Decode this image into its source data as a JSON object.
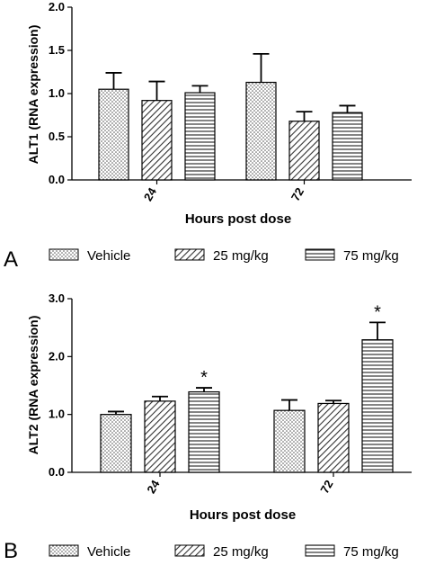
{
  "chart_data": [
    {
      "type": "bar",
      "panel_label": "A",
      "ylabel": "ALT1 (RNA expression)",
      "xlabel": "Hours post dose",
      "ylim": [
        0,
        2.0
      ],
      "yticks": [
        "0.0",
        "0.5",
        "1.0",
        "1.5",
        "2.0"
      ],
      "categories": [
        "24",
        "72"
      ],
      "series": [
        {
          "name": "Vehicle",
          "pattern": "dots",
          "values": [
            1.05,
            1.13
          ],
          "errors": [
            0.19,
            0.33
          ],
          "significant": [
            false,
            false
          ]
        },
        {
          "name": "25 mg/kg",
          "pattern": "diagonal",
          "values": [
            0.92,
            0.68
          ],
          "errors": [
            0.22,
            0.11
          ],
          "significant": [
            false,
            false
          ]
        },
        {
          "name": "75 mg/kg",
          "pattern": "horizontal",
          "values": [
            1.01,
            0.78
          ],
          "errors": [
            0.08,
            0.08
          ],
          "significant": [
            false,
            false
          ]
        }
      ],
      "legend_placement": "bottom"
    },
    {
      "type": "bar",
      "panel_label": "B",
      "ylabel": "ALT2 (RNA expression)",
      "xlabel": "Hours post dose",
      "ylim": [
        0,
        3.0
      ],
      "yticks": [
        "0.0",
        "1.0",
        "2.0",
        "3.0"
      ],
      "categories": [
        "24",
        "72"
      ],
      "series": [
        {
          "name": "Vehicle",
          "pattern": "dots",
          "values": [
            1.0,
            1.07
          ],
          "errors": [
            0.05,
            0.18
          ],
          "significant": [
            false,
            false
          ]
        },
        {
          "name": "25 mg/kg",
          "pattern": "diagonal",
          "values": [
            1.23,
            1.19
          ],
          "errors": [
            0.08,
            0.05
          ],
          "significant": [
            false,
            false
          ]
        },
        {
          "name": "75 mg/kg",
          "pattern": "horizontal",
          "values": [
            1.39,
            2.29
          ],
          "errors": [
            0.07,
            0.3
          ],
          "significant": [
            true,
            true
          ]
        }
      ],
      "significance_marker": "*",
      "legend_placement": "bottom"
    }
  ]
}
